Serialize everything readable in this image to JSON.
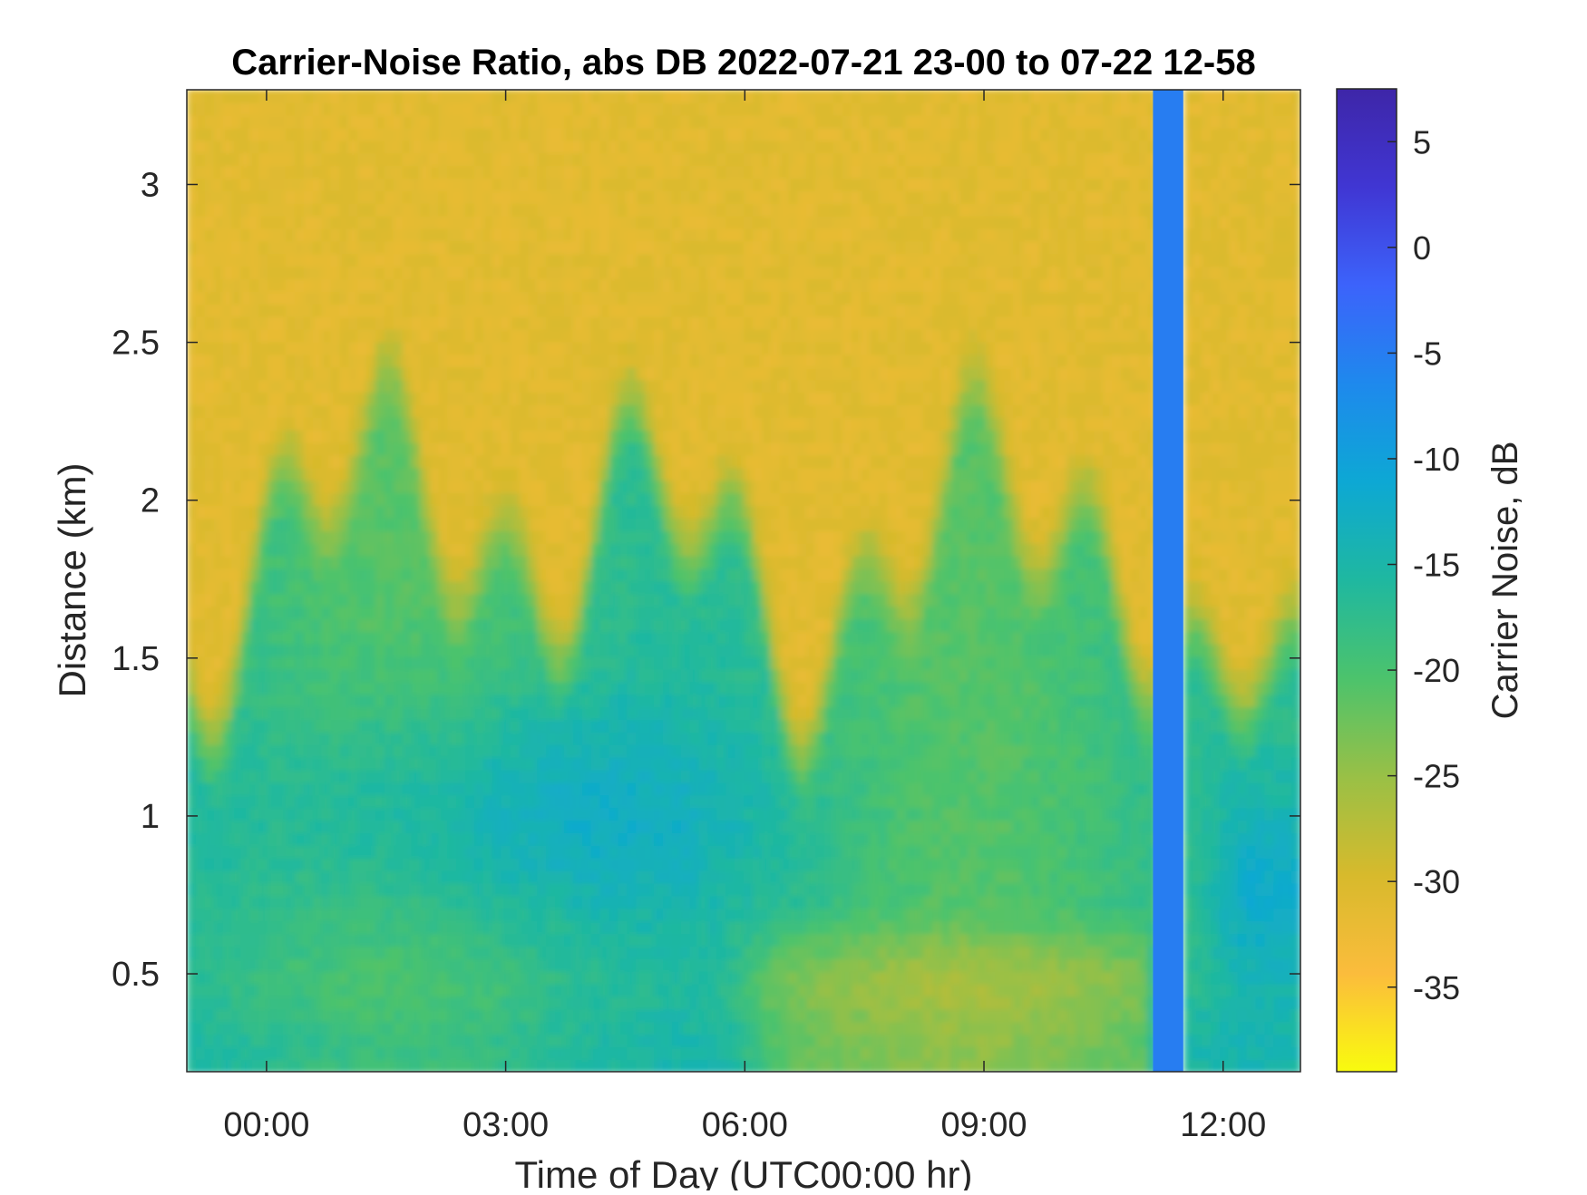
{
  "chart_data": {
    "type": "heatmap",
    "title": "Carrier-Noise Ratio, abs DB 2022-07-21 23-00 to 07-22 12-58",
    "xlabel": "Time of Day (UTC00:00 hr)",
    "ylabel": "Distance (km)",
    "colorbar_label": "Carrier Noise, dB",
    "x_units": "hours (relative to 00:00 UTC, 2022-07-22)",
    "xlim": [
      -1.0,
      12.97
    ],
    "ylim": [
      0.19,
      3.3
    ],
    "clim": [
      -39,
      7.5
    ],
    "grid": false,
    "colormap": "parula",
    "colormap_stops": [
      "#f9fb0e",
      "#fbbc3c",
      "#d7ba2c",
      "#99c046",
      "#4cc36c",
      "#1fb8a0",
      "#0da8d4",
      "#1e89ed",
      "#3c63fb",
      "#4036d3",
      "#3e26a8"
    ],
    "x_ticks": [
      0,
      3,
      6,
      9,
      12
    ],
    "x_tick_labels": [
      "00:00",
      "03:00",
      "06:00",
      "09:00",
      "12:00"
    ],
    "y_ticks": [
      0.5,
      1,
      1.5,
      2,
      2.5,
      3
    ],
    "y_tick_labels": [
      "0.5",
      "1",
      "1.5",
      "2",
      "2.5",
      "3"
    ],
    "c_ticks": [
      -35,
      -30,
      -25,
      -20,
      -15,
      -10,
      -5,
      0,
      5
    ],
    "c_tick_labels": [
      "-35",
      "-30",
      "-25",
      "-20",
      "-15",
      "-10",
      "-5",
      "0",
      "5"
    ],
    "features": [
      {
        "description": "upper background",
        "time_range": [
          -1.0,
          12.97
        ],
        "distance_range": [
          2.4,
          3.3
        ],
        "value_db": -31
      },
      {
        "description": "boundary layer minimum",
        "time_range": [
          1.0,
          5.0
        ],
        "distance_range": [
          0.8,
          1.2
        ],
        "value_db": -13
      },
      {
        "description": "near-surface layer",
        "time_range": [
          6.0,
          11.0
        ],
        "distance_range": [
          0.19,
          0.7
        ],
        "value_db": -25
      },
      {
        "description": "uniform band",
        "time_range": [
          11.12,
          11.5
        ],
        "distance_range": [
          0.19,
          3.3
        ],
        "value_db": -5
      },
      {
        "description": "lower layer after band",
        "time_range": [
          11.5,
          12.97
        ],
        "distance_range": [
          0.5,
          1.0
        ],
        "value_db": -14
      }
    ]
  }
}
